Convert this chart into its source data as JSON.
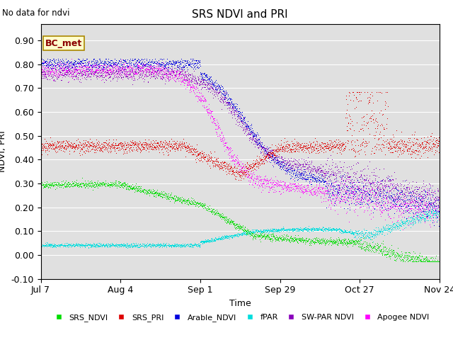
{
  "title": "SRS NDVI and PRI",
  "no_data_text": "No data for ndvi",
  "ylabel": "NDVI, PRI",
  "xlabel": "Time",
  "annotation": "BC_met",
  "xlim_days": [
    0,
    140
  ],
  "ylim": [
    -0.1,
    0.97
  ],
  "yticks": [
    -0.1,
    0.0,
    0.1,
    0.2,
    0.3,
    0.4,
    0.5,
    0.6,
    0.7,
    0.8,
    0.9
  ],
  "ytick_labels": [
    "-0.10",
    "0.00",
    "0.10",
    "0.20",
    "0.30",
    "0.40",
    "0.50",
    "0.60",
    "0.70",
    "0.80",
    "0.90"
  ],
  "xtick_labels": [
    "Jul 7",
    "Aug 4",
    "Sep 1",
    "Sep 29",
    "Oct 27",
    "Nov 24"
  ],
  "xtick_positions": [
    0,
    28,
    56,
    84,
    112,
    140
  ],
  "bg_color": "#e0e0e0",
  "fig_color": "#ffffff",
  "grid_color": "#ffffff",
  "legend_items": [
    {
      "label": "SRS_NDVI",
      "color": "#00dd00"
    },
    {
      "label": "SRS_PRI",
      "color": "#dd0000"
    },
    {
      "label": "Arable_NDVI",
      "color": "#0000dd"
    },
    {
      "label": "fPAR",
      "color": "#00dddd"
    },
    {
      "label": "SW-PAR NDVI",
      "color": "#8800bb"
    },
    {
      "label": "Apogee NDVI",
      "color": "#ff00ff"
    }
  ],
  "seed": 42,
  "n_dense": 2000
}
